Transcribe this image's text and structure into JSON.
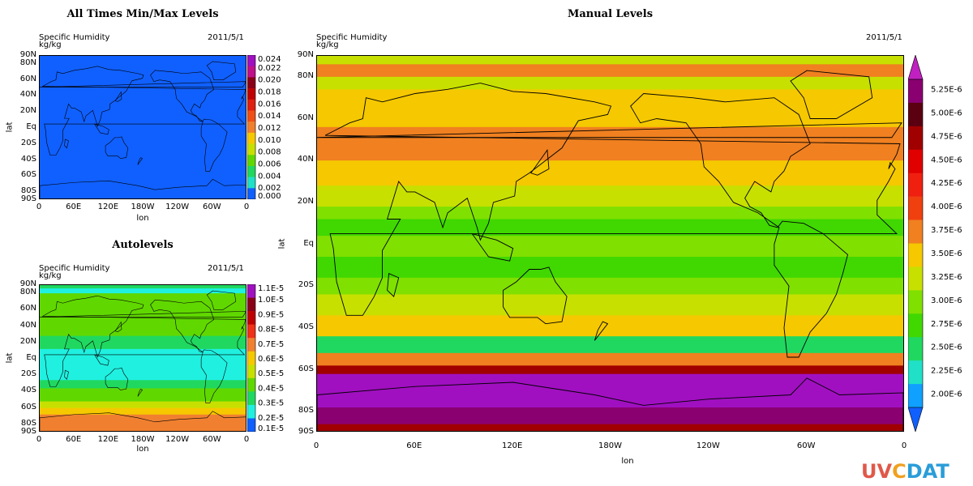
{
  "logo": {
    "parts": [
      "UV",
      "C",
      "DAT"
    ],
    "colors": [
      "#e0584a",
      "#f0a020",
      "#2a9dd8"
    ]
  },
  "chart_data": [
    {
      "id": "minmax",
      "type": "heatmap",
      "title": "All Times Min/Max Levels",
      "variable": "Specific Humidity",
      "units": "kg/kg",
      "date": "2011/5/1",
      "xlabel": "lon",
      "ylabel": "lat",
      "xticks": [
        "0",
        "60E",
        "120E",
        "180W",
        "120W",
        "60W",
        "0"
      ],
      "yticks": [
        "90N",
        "80N",
        "60N",
        "40N",
        "20N",
        "Eq",
        "20S",
        "40S",
        "60S",
        "80S",
        "90S"
      ],
      "yticks_lat": [
        90,
        80,
        60,
        40,
        20,
        0,
        -20,
        -40,
        -60,
        -80,
        -90
      ],
      "colorbar": {
        "labels": [
          "0.024",
          "0.022",
          "0.020",
          "0.018",
          "0.016",
          "0.014",
          "0.012",
          "0.010",
          "0.008",
          "0.006",
          "0.004",
          "0.002",
          "0.000"
        ],
        "colors": [
          "#a010c0",
          "#c0108a",
          "#8a0018",
          "#c00000",
          "#e02010",
          "#f05018",
          "#f08030",
          "#f5c800",
          "#c8e000",
          "#60d800",
          "#20d860",
          "#20e0c8",
          "#1060ff"
        ]
      },
      "bands": [
        {
          "lat": [
            90,
            -90
          ],
          "color": "#1060ff"
        }
      ]
    },
    {
      "id": "auto",
      "type": "heatmap",
      "title": "Autolevels",
      "variable": "Specific Humidity",
      "units": "kg/kg",
      "date": "2011/5/1",
      "xlabel": "lon",
      "ylabel": "lat",
      "xticks": [
        "0",
        "60E",
        "120E",
        "180W",
        "120W",
        "60W",
        "0"
      ],
      "yticks": [
        "90N",
        "80N",
        "60N",
        "40N",
        "20N",
        "Eq",
        "20S",
        "40S",
        "60S",
        "80S",
        "90S"
      ],
      "yticks_lat": [
        90,
        80,
        60,
        40,
        20,
        0,
        -20,
        -40,
        -60,
        -80,
        -90
      ],
      "colorbar": {
        "labels": [
          "1.1E-5",
          "1.0E-5",
          "0.9E-5",
          "0.8E-5",
          "0.7E-5",
          "0.6E-5",
          "0.5E-5",
          "0.4E-5",
          "0.3E-5",
          "0.2E-5",
          "0.1E-5"
        ],
        "colors": [
          "#a010c0",
          "#8a0018",
          "#c00000",
          "#f03018",
          "#f08030",
          "#f5c800",
          "#c8e000",
          "#60d800",
          "#20d860",
          "#20f0e0",
          "#1060ff"
        ]
      },
      "bands": [
        {
          "lat": [
            90,
            86
          ],
          "color": "#20d860"
        },
        {
          "lat": [
            86,
            80
          ],
          "color": "#20f0e0"
        },
        {
          "lat": [
            80,
            28
          ],
          "color": "#60d800"
        },
        {
          "lat": [
            28,
            12
          ],
          "color": "#20d860"
        },
        {
          "lat": [
            12,
            -26
          ],
          "color": "#20f0e0"
        },
        {
          "lat": [
            -26,
            -36
          ],
          "color": "#20d860"
        },
        {
          "lat": [
            -36,
            -52
          ],
          "color": "#60d800"
        },
        {
          "lat": [
            -52,
            -60
          ],
          "color": "#c8e000"
        },
        {
          "lat": [
            -60,
            -68
          ],
          "color": "#f5c800"
        },
        {
          "lat": [
            -68,
            -90
          ],
          "color": "#f08030"
        }
      ]
    },
    {
      "id": "manual",
      "type": "heatmap",
      "title": "Manual Levels",
      "variable": "Specific Humidity",
      "units": "kg/kg",
      "date": "2011/5/1",
      "xlabel": "lon",
      "ylabel": "lat",
      "xticks": [
        "0",
        "60E",
        "120E",
        "180W",
        "120W",
        "60W",
        "0"
      ],
      "yticks": [
        "90N",
        "80N",
        "60N",
        "40N",
        "20N",
        "Eq",
        "20S",
        "40S",
        "60S",
        "80S",
        "90S"
      ],
      "yticks_lat": [
        90,
        80,
        60,
        40,
        20,
        0,
        -20,
        -40,
        -60,
        -80,
        -90
      ],
      "colorbar": {
        "labels": [
          "5.25E-6",
          "5.00E-6",
          "4.75E-6",
          "4.50E-6",
          "4.25E-6",
          "4.00E-6",
          "3.75E-6",
          "3.50E-6",
          "3.25E-6",
          "3.00E-6",
          "2.75E-6",
          "2.50E-6",
          "2.25E-6",
          "2.00E-6"
        ],
        "colors": [
          "#8a0070",
          "#5a0010",
          "#a00000",
          "#e00000",
          "#f02010",
          "#f04010",
          "#f08020",
          "#f5c800",
          "#c8e000",
          "#80e000",
          "#40d800",
          "#20d860",
          "#20e0c8",
          "#10a0ff"
        ],
        "over_color": "#c020c0",
        "under_color": "#1060ff"
      },
      "bands": [
        {
          "lat": [
            90,
            86
          ],
          "color": "#c8e000"
        },
        {
          "lat": [
            86,
            80
          ],
          "color": "#f08020"
        },
        {
          "lat": [
            80,
            74
          ],
          "color": "#c8e000"
        },
        {
          "lat": [
            74,
            56
          ],
          "color": "#f5c800"
        },
        {
          "lat": [
            56,
            40
          ],
          "color": "#f08020"
        },
        {
          "lat": [
            40,
            28
          ],
          "color": "#f5c800"
        },
        {
          "lat": [
            28,
            18
          ],
          "color": "#c8e000"
        },
        {
          "lat": [
            18,
            12
          ],
          "color": "#80e000"
        },
        {
          "lat": [
            12,
            4
          ],
          "color": "#40d800"
        },
        {
          "lat": [
            4,
            -6
          ],
          "color": "#80e000"
        },
        {
          "lat": [
            -6,
            -16
          ],
          "color": "#40d800"
        },
        {
          "lat": [
            -16,
            -24
          ],
          "color": "#80e000"
        },
        {
          "lat": [
            -24,
            -34
          ],
          "color": "#c8e000"
        },
        {
          "lat": [
            -34,
            -44
          ],
          "color": "#f5c800"
        },
        {
          "lat": [
            -44,
            -52
          ],
          "color": "#20d860"
        },
        {
          "lat": [
            -52,
            -58
          ],
          "color": "#f08020"
        },
        {
          "lat": [
            -58,
            -62
          ],
          "color": "#a00000"
        },
        {
          "lat": [
            -62,
            -78
          ],
          "color": "#a010c0"
        },
        {
          "lat": [
            -78,
            -86
          ],
          "color": "#8a0070"
        },
        {
          "lat": [
            -86,
            -90
          ],
          "color": "#a00000"
        }
      ]
    }
  ]
}
